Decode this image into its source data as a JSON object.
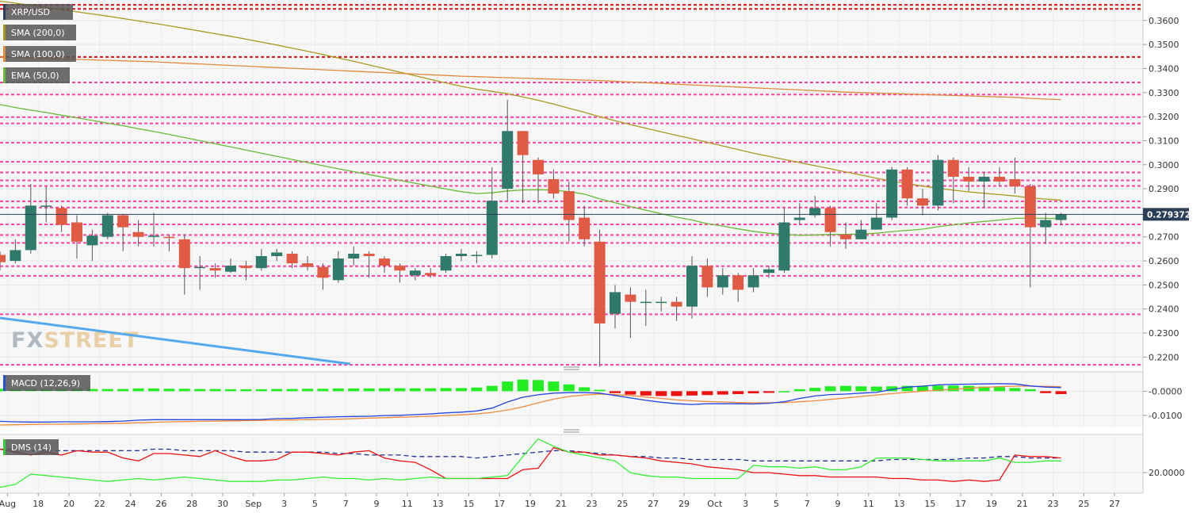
{
  "chart_data": [
    {
      "type": "candlestick",
      "symbol": "XRP/USD",
      "overlays": [
        {
          "name": "SMA (200,0)",
          "color": "#a89a1c"
        },
        {
          "name": "SMA (100,0)",
          "color": "#e08a3c"
        },
        {
          "name": "EMA (50,0)",
          "color": "#66bb33"
        }
      ],
      "current_price": "0.279372",
      "ylim": [
        0.2165,
        0.3685
      ],
      "y_ticks": [
        "0.3600",
        "0.3500",
        "0.3400",
        "0.3300",
        "0.3200",
        "0.3100",
        "0.3000",
        "0.2900",
        "0.2700",
        "0.2600",
        "0.2500",
        "0.2400",
        "0.2300",
        "0.2200"
      ],
      "x_ticks": [
        "Aug",
        "18",
        "20",
        "22",
        "24",
        "26",
        "28",
        "30",
        "Sep",
        "3",
        "5",
        "7",
        "9",
        "11",
        "13",
        "15",
        "17",
        "19",
        "21",
        "23",
        "25",
        "27",
        "29",
        "Oct",
        "3",
        "5",
        "7",
        "9",
        "11",
        "13",
        "15",
        "17",
        "19",
        "21",
        "23",
        "25",
        "27"
      ],
      "support_resistance": {
        "red": [
          0.3665,
          0.3648,
          0.3448
        ],
        "pink": [
          0.3342,
          0.3292,
          0.3198,
          0.3172,
          0.3092,
          0.3012,
          0.2968,
          0.2935,
          0.2912,
          0.2848,
          0.2822,
          0.2752,
          0.2708,
          0.2675,
          0.2578,
          0.2538,
          0.2378,
          0.2168
        ]
      },
      "candles": [
        {
          "o": 0.2625,
          "h": 0.264,
          "l": 0.256,
          "c": 0.2595
        },
        {
          "o": 0.26,
          "h": 0.269,
          "l": 0.259,
          "c": 0.2645
        },
        {
          "o": 0.2645,
          "h": 0.292,
          "l": 0.263,
          "c": 0.283
        },
        {
          "o": 0.283,
          "h": 0.291,
          "l": 0.276,
          "c": 0.283
        },
        {
          "o": 0.282,
          "h": 0.283,
          "l": 0.272,
          "c": 0.275
        },
        {
          "o": 0.276,
          "h": 0.279,
          "l": 0.261,
          "c": 0.268
        },
        {
          "o": 0.2665,
          "h": 0.273,
          "l": 0.26,
          "c": 0.2705
        },
        {
          "o": 0.27,
          "h": 0.28,
          "l": 0.269,
          "c": 0.279
        },
        {
          "o": 0.279,
          "h": 0.2795,
          "l": 0.264,
          "c": 0.274
        },
        {
          "o": 0.272,
          "h": 0.277,
          "l": 0.266,
          "c": 0.27
        },
        {
          "o": 0.27,
          "h": 0.28,
          "l": 0.266,
          "c": 0.2705
        },
        {
          "o": 0.27,
          "h": 0.271,
          "l": 0.264,
          "c": 0.2695
        },
        {
          "o": 0.269,
          "h": 0.271,
          "l": 0.246,
          "c": 0.257
        },
        {
          "o": 0.257,
          "h": 0.262,
          "l": 0.248,
          "c": 0.2575
        },
        {
          "o": 0.257,
          "h": 0.259,
          "l": 0.253,
          "c": 0.256
        },
        {
          "o": 0.2555,
          "h": 0.261,
          "l": 0.255,
          "c": 0.258
        },
        {
          "o": 0.258,
          "h": 0.26,
          "l": 0.252,
          "c": 0.257
        },
        {
          "o": 0.257,
          "h": 0.265,
          "l": 0.256,
          "c": 0.262
        },
        {
          "o": 0.262,
          "h": 0.265,
          "l": 0.26,
          "c": 0.2635
        },
        {
          "o": 0.263,
          "h": 0.264,
          "l": 0.257,
          "c": 0.259
        },
        {
          "o": 0.259,
          "h": 0.262,
          "l": 0.256,
          "c": 0.2575
        },
        {
          "o": 0.2575,
          "h": 0.259,
          "l": 0.248,
          "c": 0.253
        },
        {
          "o": 0.252,
          "h": 0.264,
          "l": 0.251,
          "c": 0.261
        },
        {
          "o": 0.261,
          "h": 0.266,
          "l": 0.258,
          "c": 0.263
        },
        {
          "o": 0.263,
          "h": 0.264,
          "l": 0.253,
          "c": 0.262
        },
        {
          "o": 0.261,
          "h": 0.262,
          "l": 0.255,
          "c": 0.258
        },
        {
          "o": 0.258,
          "h": 0.259,
          "l": 0.251,
          "c": 0.256
        },
        {
          "o": 0.254,
          "h": 0.257,
          "l": 0.252,
          "c": 0.256
        },
        {
          "o": 0.255,
          "h": 0.257,
          "l": 0.253,
          "c": 0.254
        },
        {
          "o": 0.256,
          "h": 0.263,
          "l": 0.255,
          "c": 0.262
        },
        {
          "o": 0.262,
          "h": 0.265,
          "l": 0.26,
          "c": 0.263
        },
        {
          "o": 0.262,
          "h": 0.264,
          "l": 0.259,
          "c": 0.2625
        },
        {
          "o": 0.2625,
          "h": 0.299,
          "l": 0.261,
          "c": 0.285
        },
        {
          "o": 0.29,
          "h": 0.327,
          "l": 0.285,
          "c": 0.314
        },
        {
          "o": 0.314,
          "h": 0.314,
          "l": 0.284,
          "c": 0.304
        },
        {
          "o": 0.302,
          "h": 0.303,
          "l": 0.284,
          "c": 0.296
        },
        {
          "o": 0.294,
          "h": 0.298,
          "l": 0.286,
          "c": 0.288
        },
        {
          "o": 0.289,
          "h": 0.293,
          "l": 0.268,
          "c": 0.277
        },
        {
          "o": 0.278,
          "h": 0.283,
          "l": 0.266,
          "c": 0.269
        },
        {
          "o": 0.268,
          "h": 0.273,
          "l": 0.216,
          "c": 0.234
        },
        {
          "o": 0.238,
          "h": 0.25,
          "l": 0.232,
          "c": 0.247
        },
        {
          "o": 0.246,
          "h": 0.249,
          "l": 0.228,
          "c": 0.243
        },
        {
          "o": 0.243,
          "h": 0.248,
          "l": 0.233,
          "c": 0.243
        },
        {
          "o": 0.243,
          "h": 0.245,
          "l": 0.239,
          "c": 0.243
        },
        {
          "o": 0.243,
          "h": 0.245,
          "l": 0.235,
          "c": 0.241
        },
        {
          "o": 0.241,
          "h": 0.262,
          "l": 0.236,
          "c": 0.258
        },
        {
          "o": 0.258,
          "h": 0.261,
          "l": 0.245,
          "c": 0.249
        },
        {
          "o": 0.249,
          "h": 0.257,
          "l": 0.246,
          "c": 0.254
        },
        {
          "o": 0.254,
          "h": 0.255,
          "l": 0.243,
          "c": 0.248
        },
        {
          "o": 0.249,
          "h": 0.257,
          "l": 0.247,
          "c": 0.254
        },
        {
          "o": 0.255,
          "h": 0.258,
          "l": 0.253,
          "c": 0.2565
        },
        {
          "o": 0.256,
          "h": 0.282,
          "l": 0.255,
          "c": 0.276
        },
        {
          "o": 0.277,
          "h": 0.284,
          "l": 0.275,
          "c": 0.278
        },
        {
          "o": 0.279,
          "h": 0.287,
          "l": 0.278,
          "c": 0.282
        },
        {
          "o": 0.282,
          "h": 0.283,
          "l": 0.266,
          "c": 0.272
        },
        {
          "o": 0.271,
          "h": 0.276,
          "l": 0.265,
          "c": 0.269
        },
        {
          "o": 0.269,
          "h": 0.277,
          "l": 0.269,
          "c": 0.273
        },
        {
          "o": 0.273,
          "h": 0.284,
          "l": 0.273,
          "c": 0.278
        },
        {
          "o": 0.278,
          "h": 0.299,
          "l": 0.277,
          "c": 0.298
        },
        {
          "o": 0.298,
          "h": 0.299,
          "l": 0.283,
          "c": 0.286
        },
        {
          "o": 0.286,
          "h": 0.29,
          "l": 0.279,
          "c": 0.283
        },
        {
          "o": 0.283,
          "h": 0.304,
          "l": 0.281,
          "c": 0.302
        },
        {
          "o": 0.302,
          "h": 0.303,
          "l": 0.284,
          "c": 0.295
        },
        {
          "o": 0.295,
          "h": 0.299,
          "l": 0.289,
          "c": 0.293
        },
        {
          "o": 0.293,
          "h": 0.297,
          "l": 0.282,
          "c": 0.295
        },
        {
          "o": 0.295,
          "h": 0.299,
          "l": 0.291,
          "c": 0.293
        },
        {
          "o": 0.294,
          "h": 0.303,
          "l": 0.288,
          "c": 0.291
        },
        {
          "o": 0.291,
          "h": 0.292,
          "l": 0.249,
          "c": 0.274
        },
        {
          "o": 0.274,
          "h": 0.28,
          "l": 0.267,
          "c": 0.277
        },
        {
          "o": 0.277,
          "h": 0.28,
          "l": 0.275,
          "c": 0.2794
        }
      ],
      "sma200": [
        0.368,
        0.3672,
        0.3663,
        0.3654,
        0.3645,
        0.3636,
        0.3627,
        0.3618,
        0.3608,
        0.3598,
        0.3588,
        0.3578,
        0.3567,
        0.3556,
        0.3545,
        0.3534,
        0.3522,
        0.351,
        0.3498,
        0.3485,
        0.3472,
        0.3458,
        0.3444,
        0.343,
        0.3415,
        0.34,
        0.3385,
        0.337,
        0.3355,
        0.334,
        0.3326,
        0.3314,
        0.3305,
        0.3295,
        0.3282,
        0.3268,
        0.3252,
        0.3235,
        0.3218,
        0.32,
        0.3183,
        0.3167,
        0.3152,
        0.3137,
        0.3122,
        0.3108,
        0.3093,
        0.3078,
        0.3063,
        0.3048,
        0.3035,
        0.3022,
        0.3009,
        0.2996,
        0.2983,
        0.297,
        0.2957,
        0.2944,
        0.2932,
        0.2921,
        0.2911,
        0.2902,
        0.2894,
        0.2887,
        0.2881,
        0.2876,
        0.287,
        0.2862,
        0.2857,
        0.2853
      ],
      "sma100": [
        0.3448,
        0.3446,
        0.3444,
        0.3442,
        0.344,
        0.3438,
        0.3436,
        0.3434,
        0.3432,
        0.343,
        0.3428,
        0.3425,
        0.3422,
        0.3419,
        0.3416,
        0.3413,
        0.341,
        0.3407,
        0.3404,
        0.3401,
        0.3398,
        0.3395,
        0.3392,
        0.3389,
        0.3386,
        0.3383,
        0.338,
        0.3377,
        0.3374,
        0.3371,
        0.3368,
        0.3366,
        0.3364,
        0.3362,
        0.336,
        0.3358,
        0.3356,
        0.3354,
        0.3352,
        0.335,
        0.3347,
        0.3344,
        0.3341,
        0.3338,
        0.3335,
        0.3332,
        0.3329,
        0.3326,
        0.3323,
        0.332,
        0.3317,
        0.3314,
        0.3311,
        0.3308,
        0.3305,
        0.3302,
        0.33,
        0.3298,
        0.3296,
        0.3294,
        0.3292,
        0.329,
        0.3288,
        0.3286,
        0.3284,
        0.3282,
        0.328,
        0.3276,
        0.3273,
        0.3271
      ],
      "ema50": [
        0.325,
        0.3238,
        0.3227,
        0.3217,
        0.3206,
        0.3195,
        0.3184,
        0.3173,
        0.3162,
        0.315,
        0.3138,
        0.3126,
        0.3113,
        0.31,
        0.3087,
        0.3074,
        0.3061,
        0.3048,
        0.3035,
        0.3022,
        0.3009,
        0.2996,
        0.2983,
        0.2971,
        0.2959,
        0.2947,
        0.2935,
        0.2923,
        0.2911,
        0.2899,
        0.2888,
        0.288,
        0.2883,
        0.2891,
        0.2895,
        0.2896,
        0.2894,
        0.2888,
        0.2878,
        0.2858,
        0.2842,
        0.2826,
        0.2811,
        0.2796,
        0.2782,
        0.277,
        0.2755,
        0.2745,
        0.2733,
        0.2723,
        0.2715,
        0.271,
        0.2707,
        0.2708,
        0.271,
        0.271,
        0.2712,
        0.2715,
        0.2722,
        0.2727,
        0.2732,
        0.2742,
        0.275,
        0.2758,
        0.2764,
        0.277,
        0.2777,
        0.2778,
        0.2777,
        0.2776
      ]
    },
    {
      "type": "macd",
      "title": "MACD (12,26,9)",
      "ylim": [
        -0.015,
        0.008
      ],
      "y_ticks": [
        "-0.0000",
        "-0.0100"
      ],
      "macd": [
        -0.0125,
        -0.0127,
        -0.0128,
        -0.0128,
        -0.0127,
        -0.0127,
        -0.0127,
        -0.0126,
        -0.0124,
        -0.012,
        -0.0118,
        -0.0118,
        -0.0118,
        -0.0118,
        -0.0118,
        -0.0118,
        -0.0118,
        -0.0117,
        -0.0114,
        -0.0113,
        -0.011,
        -0.0108,
        -0.0106,
        -0.0105,
        -0.0104,
        -0.0101,
        -0.01,
        -0.0097,
        -0.0094,
        -0.009,
        -0.0087,
        -0.0082,
        -0.007,
        -0.0045,
        -0.0025,
        -0.0015,
        -0.0008,
        -0.0006,
        -0.0006,
        -0.0008,
        -0.0018,
        -0.0028,
        -0.0038,
        -0.0046,
        -0.0052,
        -0.0055,
        -0.0052,
        -0.0052,
        -0.0052,
        -0.0053,
        -0.005,
        -0.0044,
        -0.003,
        -0.002,
        -0.0014,
        -0.0012,
        -0.0008,
        -0.0005,
        0.0007,
        0.0017,
        0.0021,
        0.0026,
        0.0028,
        0.0029,
        0.003,
        0.0031,
        0.003,
        0.0022,
        0.0017,
        0.0015
      ],
      "signal": [
        -0.014,
        -0.0139,
        -0.0138,
        -0.0137,
        -0.0137,
        -0.0136,
        -0.0135,
        -0.0134,
        -0.0133,
        -0.0131,
        -0.0129,
        -0.0127,
        -0.0126,
        -0.0125,
        -0.0124,
        -0.0123,
        -0.0122,
        -0.0121,
        -0.012,
        -0.0119,
        -0.0118,
        -0.0117,
        -0.0116,
        -0.0114,
        -0.0112,
        -0.011,
        -0.0108,
        -0.0106,
        -0.0104,
        -0.0101,
        -0.0098,
        -0.0094,
        -0.0088,
        -0.0078,
        -0.0065,
        -0.0048,
        -0.0033,
        -0.0022,
        -0.0016,
        -0.0012,
        -0.0014,
        -0.0018,
        -0.0024,
        -0.003,
        -0.0036,
        -0.004,
        -0.0043,
        -0.0045,
        -0.0047,
        -0.0048,
        -0.0048,
        -0.0047,
        -0.0044,
        -0.004,
        -0.0034,
        -0.0028,
        -0.0022,
        -0.0016,
        -0.001,
        -0.0005,
        0.0,
        0.0004,
        0.0008,
        0.0012,
        0.0016,
        0.0019,
        0.0021,
        0.0021,
        0.002,
        0.0019
      ],
      "histogram": [
        0.001,
        0.0008,
        0.0008,
        0.0008,
        0.0009,
        0.0009,
        0.0009,
        0.0009,
        0.0009,
        0.0011,
        0.0011,
        0.001,
        0.001,
        0.0009,
        0.0009,
        0.0008,
        0.0008,
        0.0008,
        0.0009,
        0.0009,
        0.001,
        0.001,
        0.0011,
        0.0011,
        0.0011,
        0.0012,
        0.0012,
        0.0012,
        0.0012,
        0.0013,
        0.0013,
        0.0015,
        0.0022,
        0.004,
        0.0048,
        0.0046,
        0.004,
        0.0028,
        0.0016,
        0.0006,
        -0.0008,
        -0.0014,
        -0.0018,
        -0.002,
        -0.002,
        -0.0018,
        -0.0016,
        -0.0014,
        -0.0012,
        -0.0009,
        -0.0007,
        0.0,
        0.0008,
        0.0014,
        0.002,
        0.0022,
        0.002,
        0.0019,
        0.002,
        0.0022,
        0.0022,
        0.0023,
        0.0023,
        0.0022,
        0.0019,
        0.0017,
        0.0013,
        0.0008,
        -0.0008,
        -0.0012
      ]
    },
    {
      "type": "line",
      "title": "DMS (14)",
      "ylim": [
        6,
        46
      ],
      "y_ticks": [
        "20.0000"
      ],
      "plus_di": [
        10,
        12,
        19,
        18,
        17,
        16,
        15,
        14,
        15,
        16,
        15,
        16,
        17,
        16,
        15,
        14,
        14,
        14,
        15,
        15,
        16,
        17,
        16,
        16,
        15,
        16,
        15,
        16,
        17,
        16,
        16,
        16,
        17,
        18,
        31,
        43,
        38,
        34,
        32,
        30,
        28,
        20,
        18,
        17,
        17,
        16,
        16,
        16,
        16,
        25,
        24,
        24,
        23,
        24,
        22,
        22,
        24,
        30,
        30,
        30,
        29,
        28,
        28,
        28,
        28,
        30,
        27,
        27,
        28,
        28
      ],
      "minus_di": [
        36,
        34,
        32,
        34,
        32,
        35,
        34,
        34,
        30,
        28,
        33,
        33,
        32,
        31,
        35,
        31,
        28,
        28,
        29,
        34,
        34,
        33,
        32,
        34,
        35,
        30,
        28,
        27,
        22,
        16,
        16,
        16,
        16,
        16,
        22,
        23,
        37,
        34,
        34,
        32,
        32,
        31,
        30,
        28,
        27,
        26,
        24,
        23,
        22,
        20,
        20,
        19,
        18,
        18,
        17,
        17,
        17,
        17,
        16,
        16,
        15,
        15,
        14,
        15,
        14,
        15,
        32,
        31,
        31,
        30
      ],
      "adx": [
        36,
        36,
        35,
        35,
        35,
        35,
        35,
        35,
        35,
        35,
        36,
        36,
        35,
        35,
        35,
        35,
        34,
        34,
        34,
        34,
        34,
        34,
        33,
        33,
        32,
        32,
        32,
        31,
        31,
        31,
        31,
        30,
        31,
        32,
        33,
        34,
        35,
        35,
        34,
        33,
        32,
        31,
        31,
        30,
        30,
        29,
        29,
        29,
        29,
        28,
        28,
        28,
        28,
        28,
        28,
        28,
        28,
        28,
        29,
        29,
        29,
        29,
        29,
        30,
        30,
        31,
        31,
        30,
        30,
        30
      ]
    }
  ]
}
